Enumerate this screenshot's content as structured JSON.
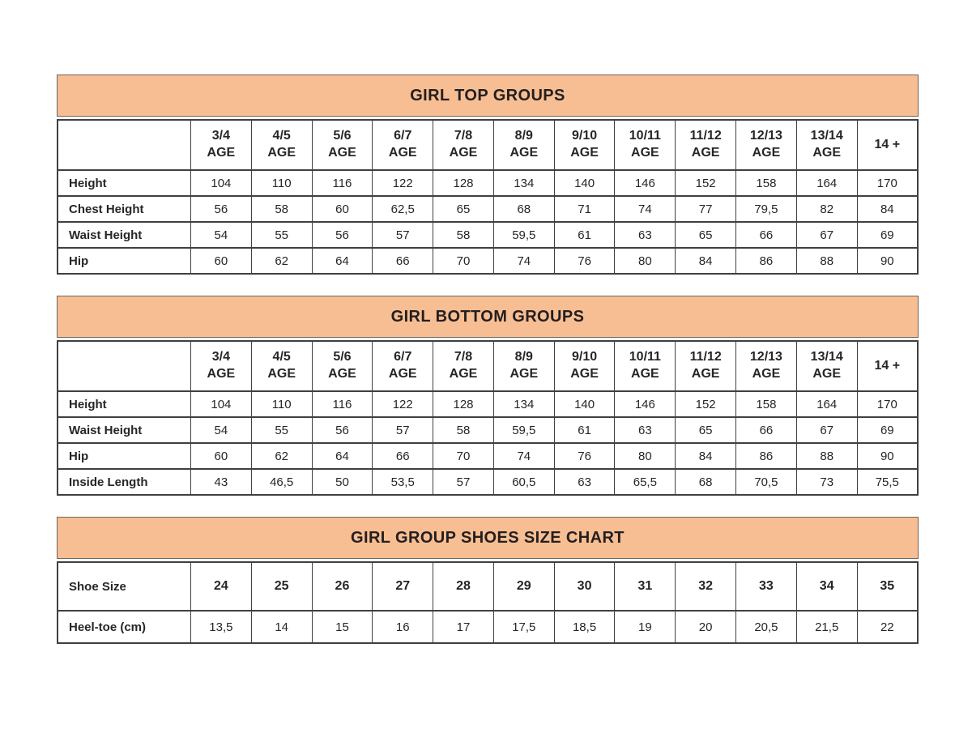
{
  "colors": {
    "band_background": "#f8be93",
    "band_border": "#6e655c",
    "grid_border": "#404040",
    "text": "#262626",
    "page_background": "#ffffff"
  },
  "tables": [
    {
      "id": "girl-top",
      "title": "GIRL TOP GROUPS",
      "header_label": "",
      "columns": [
        [
          "3/4",
          "AGE"
        ],
        [
          "4/5",
          "AGE"
        ],
        [
          "5/6",
          "AGE"
        ],
        [
          "6/7",
          "AGE"
        ],
        [
          "7/8",
          "AGE"
        ],
        [
          "8/9",
          "AGE"
        ],
        [
          "9/10",
          "AGE"
        ],
        [
          "10/11",
          "AGE"
        ],
        [
          "11/12",
          "AGE"
        ],
        [
          "12/13",
          "AGE"
        ],
        [
          "13/14",
          "AGE"
        ],
        [
          "14 +"
        ]
      ],
      "rows": [
        {
          "label": "Height",
          "values": [
            "104",
            "110",
            "116",
            "122",
            "128",
            "134",
            "140",
            "146",
            "152",
            "158",
            "164",
            "170"
          ]
        },
        {
          "label": "Chest Height",
          "values": [
            "56",
            "58",
            "60",
            "62,5",
            "65",
            "68",
            "71",
            "74",
            "77",
            "79,5",
            "82",
            "84"
          ]
        },
        {
          "label": "Waist Height",
          "values": [
            "54",
            "55",
            "56",
            "57",
            "58",
            "59,5",
            "61",
            "63",
            "65",
            "66",
            "67",
            "69"
          ]
        },
        {
          "label": "Hip",
          "values": [
            "60",
            "62",
            "64",
            "66",
            "70",
            "74",
            "76",
            "80",
            "84",
            "86",
            "88",
            "90"
          ]
        }
      ]
    },
    {
      "id": "girl-bottom",
      "title": "GIRL BOTTOM GROUPS",
      "header_label": "",
      "columns": [
        [
          "3/4",
          "AGE"
        ],
        [
          "4/5",
          "AGE"
        ],
        [
          "5/6",
          "AGE"
        ],
        [
          "6/7",
          "AGE"
        ],
        [
          "7/8",
          "AGE"
        ],
        [
          "8/9",
          "AGE"
        ],
        [
          "9/10",
          "AGE"
        ],
        [
          "10/11",
          "AGE"
        ],
        [
          "11/12",
          "AGE"
        ],
        [
          "12/13",
          "AGE"
        ],
        [
          "13/14",
          "AGE"
        ],
        [
          "14 +"
        ]
      ],
      "rows": [
        {
          "label": "Height",
          "values": [
            "104",
            "110",
            "116",
            "122",
            "128",
            "134",
            "140",
            "146",
            "152",
            "158",
            "164",
            "170"
          ]
        },
        {
          "label": "Waist Height",
          "values": [
            "54",
            "55",
            "56",
            "57",
            "58",
            "59,5",
            "61",
            "63",
            "65",
            "66",
            "67",
            "69"
          ]
        },
        {
          "label": "Hip",
          "values": [
            "60",
            "62",
            "64",
            "66",
            "70",
            "74",
            "76",
            "80",
            "84",
            "86",
            "88",
            "90"
          ]
        },
        {
          "label": "Inside Length",
          "values": [
            "43",
            "46,5",
            "50",
            "53,5",
            "57",
            "60,5",
            "63",
            "65,5",
            "68",
            "70,5",
            "73",
            "75,5"
          ]
        }
      ]
    },
    {
      "id": "shoes",
      "title": "GIRL GROUP SHOES SIZE CHART",
      "header_label": "Shoe Size",
      "columns": [
        [
          "24"
        ],
        [
          "25"
        ],
        [
          "26"
        ],
        [
          "27"
        ],
        [
          "28"
        ],
        [
          "29"
        ],
        [
          "30"
        ],
        [
          "31"
        ],
        [
          "32"
        ],
        [
          "33"
        ],
        [
          "34"
        ],
        [
          "35"
        ]
      ],
      "rows": [
        {
          "label": "Heel-toe (cm)",
          "values": [
            "13,5",
            "14",
            "15",
            "16",
            "17",
            "17,5",
            "18,5",
            "19",
            "20",
            "20,5",
            "21,5",
            "22"
          ]
        }
      ]
    }
  ]
}
